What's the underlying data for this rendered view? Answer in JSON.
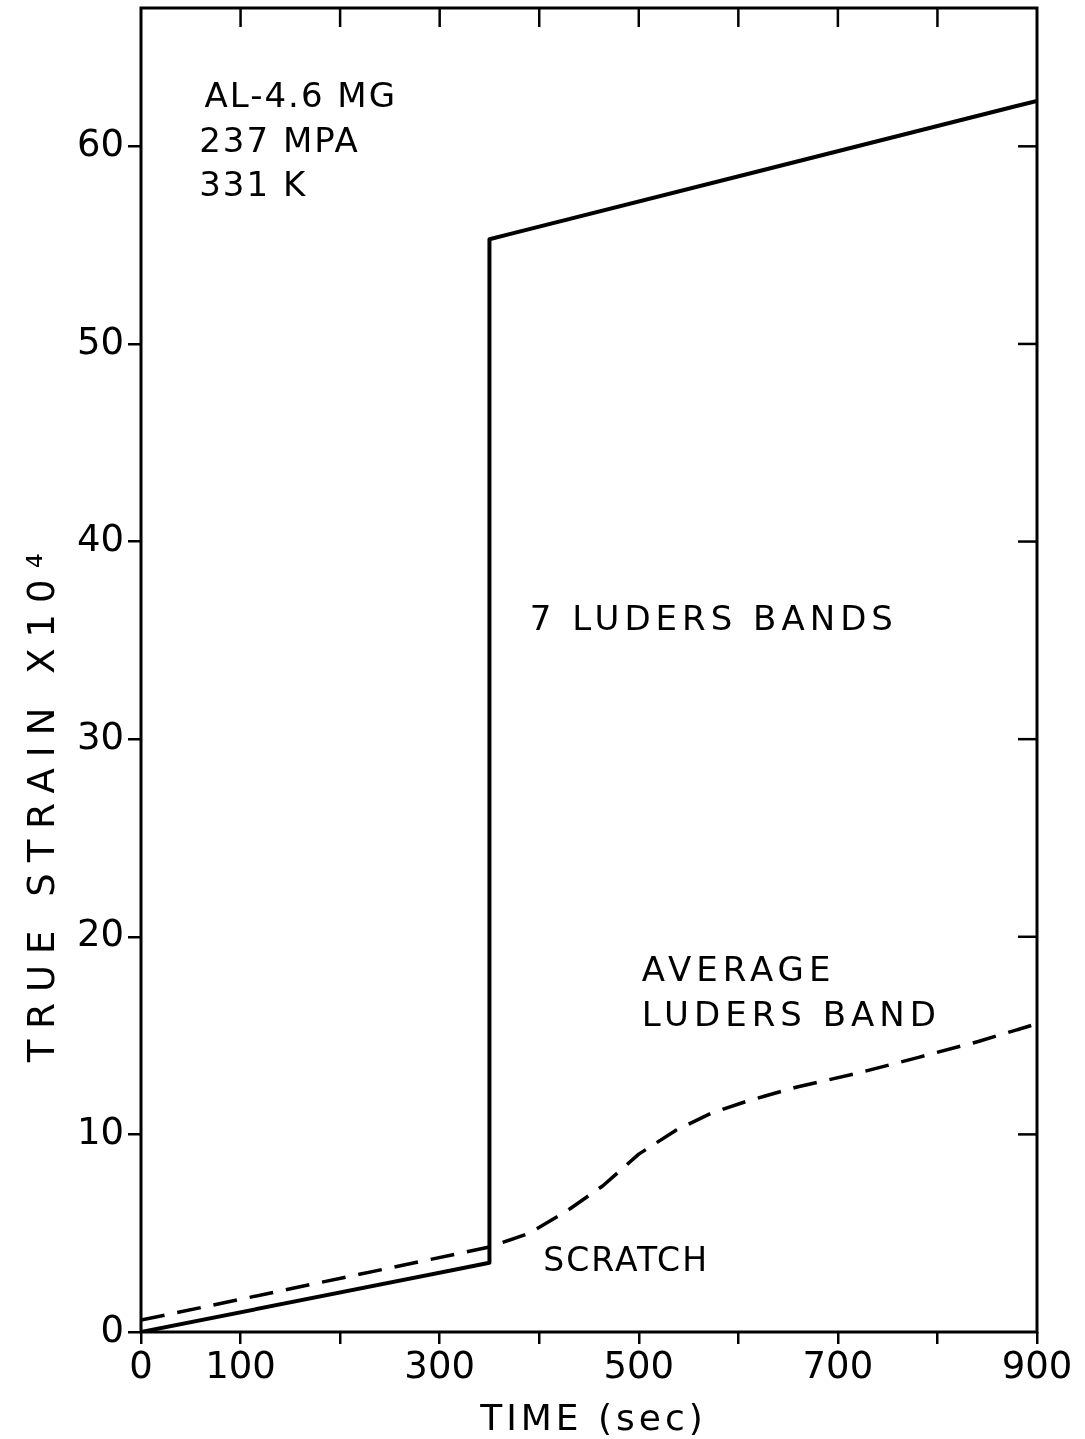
{
  "chart_data": {
    "type": "line",
    "xlabel": "TIME (sec)",
    "ylabel": "TRUE STRAIN X10⁴",
    "annotations": [
      "AL-4.6 MG",
      "237 MPA",
      "331 K",
      "SCRATCH"
    ],
    "series": [
      {
        "name": "7 LUDERS BANDS",
        "color": "#000000",
        "line_style": "solid",
        "x": [
          0,
          350,
          350,
          900
        ],
        "values": [
          0,
          3.5,
          55.3,
          62.3
        ]
      },
      {
        "name": "AVERAGE LUDERS BAND",
        "color": "#000000",
        "line_style": "dashed",
        "x": [
          0,
          350,
          390,
          427,
          464,
          500,
          537,
          574,
          610,
          659,
          720,
          781,
          841,
          900
        ],
        "values": [
          0.6,
          4.3,
          5.0,
          6.1,
          7.4,
          9.0,
          10.2,
          11.1,
          11.7,
          12.4,
          13.1,
          13.9,
          14.7,
          15.6
        ]
      }
    ],
    "xlim": [
      0,
      900
    ],
    "ylim": [
      0,
      67
    ],
    "xticks": [
      0,
      100,
      {
        "value": 200,
        "label": null
      },
      300,
      {
        "value": 400,
        "label": null
      },
      500,
      {
        "value": 600,
        "label": null
      },
      700,
      {
        "value": 800,
        "label": null
      },
      900
    ],
    "yticks": [
      0,
      10,
      20,
      30,
      40,
      50,
      60
    ],
    "grid": false,
    "marker": "none"
  }
}
